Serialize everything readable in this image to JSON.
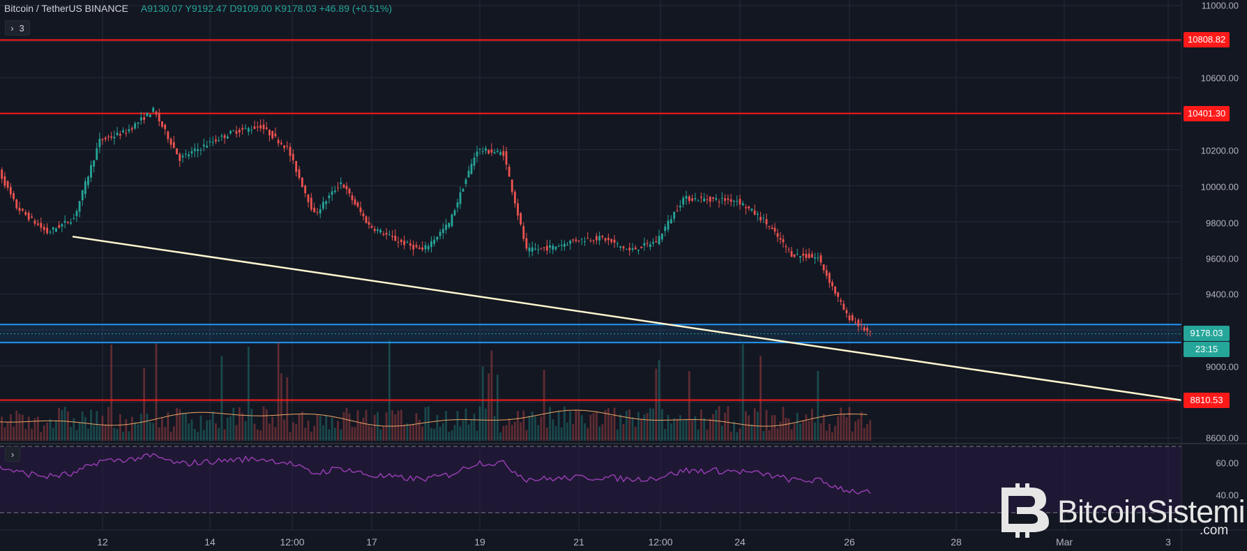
{
  "header": {
    "title": "Bitcoin / TetherUS  BINANCE",
    "ohlc": "A9130.07  Y9192.47  D9109.00  K9178.03  +46.89 (+0.51%)"
  },
  "indicators_button": {
    "chevron": "›",
    "count": "3"
  },
  "rsi_button": {
    "chevron": "›"
  },
  "colors": {
    "background": "#131722",
    "grid": "#262b38",
    "up": "#26a69a",
    "down": "#ef5350",
    "support_resistance": "#ff1a1a",
    "trendline": "#fff6d0",
    "zone": "#2196f3",
    "rsi_line": "#9b3fb8",
    "rsi_band": "#2a1a44",
    "ma": "#f0a868"
  },
  "price_axis": {
    "labels": [
      "11000.00",
      "10600.00",
      "10200.00",
      "10000.00",
      "9800.00",
      "9600.00",
      "9400.00",
      "9000.00",
      "8600.00"
    ]
  },
  "rsi_axis": {
    "labels": [
      "60.00",
      "40.00"
    ]
  },
  "price_tags": [
    {
      "text": "10808.82",
      "kind": "resistance"
    },
    {
      "text": "10401.30",
      "kind": "resistance"
    },
    {
      "text": "9178.03",
      "kind": "last-price"
    },
    {
      "text": "23:15",
      "kind": "countdown"
    },
    {
      "text": "8810.53",
      "kind": "support"
    }
  ],
  "time_axis": {
    "labels": [
      "12",
      "14",
      "12:00",
      "17",
      "19",
      "21",
      "12:00",
      "24",
      "26",
      "28",
      "Mar",
      "3"
    ]
  },
  "watermark": {
    "brand": "BitcoinSistemi",
    "suffix": ".com",
    "logo": "bitcoin-b-logo"
  },
  "chart_data": {
    "type": "candlestick",
    "symbol": "Bitcoin / TetherUS",
    "exchange": "BINANCE",
    "last": {
      "open": 9130.07,
      "high": 9192.47,
      "low": 9109.0,
      "close": 9178.03,
      "change": 46.89,
      "change_pct": 0.51
    },
    "ylim": [
      8600,
      11000
    ],
    "horizontal_levels": [
      10808.82,
      10401.3,
      8810.53
    ],
    "zone": [
      9130,
      9230
    ],
    "trendline": {
      "from": {
        "x": "11",
        "y": 9718
      },
      "to": {
        "x": "Mar 3",
        "y": 8810
      }
    },
    "close_path": [
      [
        "10",
        10180
      ],
      [
        "10",
        9880
      ],
      [
        "11",
        9740
      ],
      [
        "11",
        9820
      ],
      [
        "12",
        10250
      ],
      [
        "12",
        10300
      ],
      [
        "13",
        10420
      ],
      [
        "13",
        10150
      ],
      [
        "14",
        10230
      ],
      [
        "14",
        10300
      ],
      [
        "15",
        10330
      ],
      [
        "15",
        10210
      ],
      [
        "16",
        9840
      ],
      [
        "16",
        10020
      ],
      [
        "17",
        9780
      ],
      [
        "17",
        9700
      ],
      [
        "18",
        9640
      ],
      [
        "18",
        9790
      ],
      [
        "19",
        10200
      ],
      [
        "19",
        10180
      ],
      [
        "20",
        9640
      ],
      [
        "20",
        9660
      ],
      [
        "21",
        9700
      ],
      [
        "21",
        9710
      ],
      [
        "22",
        9640
      ],
      [
        "22",
        9690
      ],
      [
        "23",
        9930
      ],
      [
        "24",
        9920
      ],
      [
        "24",
        9810
      ],
      [
        "25",
        9620
      ],
      [
        "25",
        9600
      ],
      [
        "26",
        9280
      ],
      [
        "26",
        9178
      ]
    ],
    "rsi": {
      "levels": [
        70,
        30
      ],
      "axis_labels": [
        60,
        40
      ],
      "ylim": [
        25,
        75
      ]
    }
  }
}
